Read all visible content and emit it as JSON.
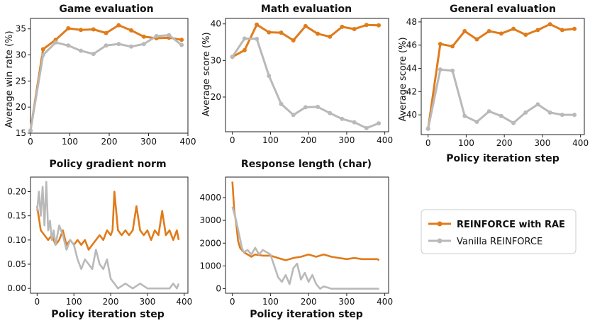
{
  "colors": {
    "rae": "#e07b1a",
    "vanilla": "#b9b9b9",
    "axis": "#222222"
  },
  "legend": {
    "items": [
      {
        "label": "REINFORCE with RAE",
        "color": "#e07b1a",
        "bold": true
      },
      {
        "label": "Vanilla REINFORCE",
        "color": "#b9b9b9",
        "bold": false
      }
    ]
  },
  "chart_data": [
    {
      "id": "game",
      "type": "line",
      "title": "Game evaluation",
      "xlabel": "",
      "ylabel": "Average win rate (%)",
      "xlim": [
        0,
        400
      ],
      "ylim": [
        15,
        37
      ],
      "xticks": [
        0,
        100,
        200,
        300,
        400
      ],
      "yticks": [
        15,
        20,
        25,
        30,
        35
      ],
      "markers": true,
      "series": [
        {
          "name": "REINFORCE with RAE",
          "color": "#e07b1a",
          "x": [
            0,
            32,
            64,
            96,
            128,
            160,
            192,
            224,
            256,
            288,
            320,
            352,
            384
          ],
          "y": [
            15.5,
            31.1,
            32.9,
            35.1,
            34.8,
            34.9,
            34.2,
            35.7,
            34.7,
            33.5,
            33.2,
            33.3,
            32.9
          ]
        },
        {
          "name": "Vanilla REINFORCE",
          "color": "#b9b9b9",
          "x": [
            0,
            32,
            64,
            96,
            128,
            160,
            192,
            224,
            256,
            288,
            320,
            352,
            384
          ],
          "y": [
            15.5,
            30.0,
            32.4,
            31.8,
            30.8,
            30.2,
            31.8,
            32.1,
            31.6,
            32.1,
            33.6,
            33.8,
            31.9
          ]
        }
      ]
    },
    {
      "id": "math",
      "type": "line",
      "title": "Math evaluation",
      "xlabel": "",
      "ylabel": "Average score (%)",
      "xlim": [
        -18,
        410
      ],
      "ylim": [
        10.5,
        41.5
      ],
      "xticks": [
        0,
        100,
        200,
        300,
        400
      ],
      "yticks": [
        20,
        30,
        40
      ],
      "markers": true,
      "series": [
        {
          "name": "REINFORCE with RAE",
          "color": "#e07b1a",
          "x": [
            0,
            32,
            64,
            96,
            128,
            160,
            192,
            224,
            256,
            288,
            320,
            352,
            384
          ],
          "y": [
            31.0,
            32.8,
            39.8,
            37.7,
            37.6,
            35.5,
            39.4,
            37.3,
            36.5,
            39.2,
            38.6,
            39.7,
            39.6
          ]
        },
        {
          "name": "Vanilla REINFORCE",
          "color": "#b9b9b9",
          "x": [
            0,
            32,
            64,
            96,
            128,
            160,
            192,
            224,
            256,
            288,
            320,
            352,
            384
          ],
          "y": [
            31.0,
            36.0,
            35.9,
            25.8,
            18.1,
            15.1,
            17.2,
            17.3,
            15.6,
            14.0,
            13.1,
            11.5,
            12.8
          ]
        }
      ]
    },
    {
      "id": "general",
      "type": "line",
      "title": "General evaluation",
      "xlabel": "Policy iteration step",
      "ylabel": "Average score (%)",
      "xlim": [
        -18,
        410
      ],
      "ylim": [
        38.3,
        48.3
      ],
      "xticks": [
        0,
        100,
        200,
        300,
        400
      ],
      "yticks": [
        40,
        42,
        44,
        46,
        48
      ],
      "markers": true,
      "series": [
        {
          "name": "REINFORCE with RAE",
          "color": "#e07b1a",
          "x": [
            0,
            32,
            64,
            96,
            128,
            160,
            192,
            224,
            256,
            288,
            320,
            352,
            384
          ],
          "y": [
            38.8,
            46.1,
            45.9,
            47.2,
            46.5,
            47.2,
            47.0,
            47.4,
            46.9,
            47.3,
            47.8,
            47.3,
            47.4
          ]
        },
        {
          "name": "Vanilla REINFORCE",
          "color": "#b9b9b9",
          "x": [
            0,
            32,
            64,
            96,
            128,
            160,
            192,
            224,
            256,
            288,
            320,
            352,
            384
          ],
          "y": [
            38.8,
            43.9,
            43.8,
            39.9,
            39.4,
            40.3,
            39.9,
            39.3,
            40.2,
            40.9,
            40.2,
            40.0,
            40.0
          ]
        }
      ]
    },
    {
      "id": "gradnorm",
      "type": "line",
      "title": "Policy gradient norm",
      "xlabel": "Policy iteration step",
      "ylabel": "",
      "xlim": [
        -18,
        410
      ],
      "ylim": [
        -0.01,
        0.23
      ],
      "xticks": [
        0,
        100,
        200,
        300,
        400
      ],
      "yticks": [
        0.0,
        0.05,
        0.1,
        0.15,
        0.2
      ],
      "ytick_labels": [
        "0.00",
        "0.05",
        "0.10",
        "0.15",
        "0.20"
      ],
      "markers": false,
      "series": [
        {
          "name": "REINFORCE with RAE",
          "color": "#e07b1a",
          "x": [
            0,
            10,
            20,
            30,
            40,
            50,
            60,
            70,
            80,
            90,
            100,
            110,
            120,
            130,
            140,
            150,
            160,
            170,
            180,
            190,
            200,
            205,
            210,
            220,
            230,
            240,
            250,
            260,
            270,
            280,
            290,
            300,
            310,
            320,
            330,
            340,
            350,
            360,
            370,
            380,
            385
          ],
          "y": [
            0.17,
            0.12,
            0.11,
            0.1,
            0.11,
            0.09,
            0.1,
            0.12,
            0.09,
            0.1,
            0.09,
            0.1,
            0.09,
            0.1,
            0.08,
            0.09,
            0.1,
            0.11,
            0.1,
            0.12,
            0.11,
            0.12,
            0.2,
            0.12,
            0.11,
            0.12,
            0.11,
            0.12,
            0.17,
            0.12,
            0.11,
            0.12,
            0.1,
            0.12,
            0.11,
            0.16,
            0.11,
            0.12,
            0.1,
            0.12,
            0.1
          ]
        },
        {
          "name": "Vanilla REINFORCE",
          "color": "#b9b9b9",
          "x": [
            0,
            5,
            10,
            15,
            20,
            25,
            30,
            35,
            40,
            45,
            50,
            60,
            70,
            80,
            90,
            100,
            110,
            120,
            130,
            140,
            150,
            160,
            170,
            180,
            190,
            200,
            210,
            220,
            240,
            260,
            280,
            300,
            320,
            340,
            360,
            370,
            380,
            385
          ],
          "y": [
            0.16,
            0.2,
            0.15,
            0.21,
            0.13,
            0.22,
            0.12,
            0.14,
            0.1,
            0.12,
            0.09,
            0.13,
            0.11,
            0.08,
            0.1,
            0.09,
            0.06,
            0.04,
            0.06,
            0.05,
            0.04,
            0.08,
            0.05,
            0.04,
            0.06,
            0.02,
            0.01,
            0.0,
            0.01,
            0.0,
            0.01,
            0.0,
            0.0,
            0.0,
            0.0,
            0.01,
            0.0,
            0.01
          ]
        }
      ]
    },
    {
      "id": "resplen",
      "type": "line",
      "title": "Response length (char)",
      "xlabel": "Policy iteration step",
      "ylabel": "",
      "xlim": [
        -18,
        410
      ],
      "ylim": [
        -200,
        4900
      ],
      "xticks": [
        0,
        100,
        200,
        300,
        400
      ],
      "yticks": [
        0,
        1000,
        2000,
        3000,
        4000
      ],
      "markers": false,
      "series": [
        {
          "name": "REINFORCE with RAE",
          "color": "#e07b1a",
          "x": [
            0,
            5,
            10,
            15,
            20,
            30,
            40,
            50,
            60,
            80,
            100,
            120,
            140,
            160,
            180,
            200,
            220,
            240,
            260,
            280,
            300,
            320,
            340,
            360,
            380,
            385
          ],
          "y": [
            4700,
            3400,
            2900,
            2100,
            1800,
            1600,
            1500,
            1400,
            1500,
            1450,
            1450,
            1350,
            1250,
            1350,
            1400,
            1500,
            1400,
            1500,
            1400,
            1350,
            1300,
            1350,
            1300,
            1300,
            1300,
            1250
          ]
        },
        {
          "name": "Vanilla REINFORCE",
          "color": "#b9b9b9",
          "x": [
            0,
            5,
            10,
            15,
            20,
            25,
            30,
            40,
            50,
            60,
            70,
            80,
            90,
            100,
            110,
            120,
            130,
            140,
            150,
            160,
            170,
            180,
            190,
            200,
            210,
            220,
            230,
            240,
            260,
            300,
            340,
            385
          ],
          "y": [
            3600,
            3300,
            3000,
            2600,
            2200,
            1800,
            1600,
            1700,
            1500,
            1800,
            1500,
            1700,
            1600,
            1500,
            1000,
            500,
            300,
            600,
            200,
            900,
            1100,
            400,
            700,
            300,
            600,
            200,
            0,
            100,
            0,
            0,
            0,
            0
          ]
        }
      ]
    }
  ]
}
